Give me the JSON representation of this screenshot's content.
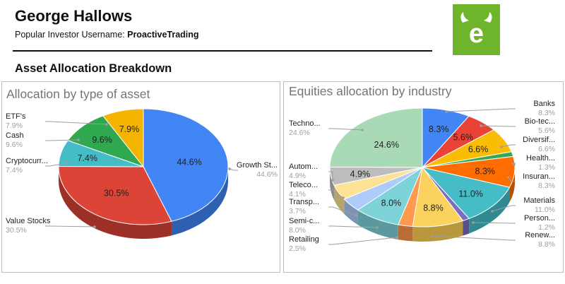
{
  "header": {
    "investor_name": "George Hallows",
    "username_label": "Popular Investor Username: ",
    "username_value": "ProactiveTrading",
    "section_title": "Asset Allocation Breakdown"
  },
  "brand": {
    "logo_icon": "etoro-bull-logo-icon",
    "logo_color": "#6fb52b"
  },
  "chart_data": [
    {
      "type": "pie",
      "title": "Allocation by type of asset",
      "three_d": true,
      "start_angle_deg": 0,
      "slices": [
        {
          "label": "Growth St...",
          "value": 44.6,
          "display": "44.6%",
          "color": "#4285f4",
          "dark": "#2f5fb0"
        },
        {
          "label": "Value Stocks",
          "value": 30.5,
          "display": "30.5%",
          "color": "#db4437",
          "dark": "#9c2f26"
        },
        {
          "label": "Cryptocurr...",
          "value": 7.4,
          "display": "7.4%",
          "color": "#46bdc6",
          "dark": "#2f8a91"
        },
        {
          "label": "Cash",
          "value": 9.6,
          "display": "9.6%",
          "color": "#2fa84f",
          "dark": "#1f7a38"
        },
        {
          "label": "ETF's",
          "value": 7.9,
          "display": "7.9%",
          "color": "#f4b400",
          "dark": "#b08200"
        }
      ]
    },
    {
      "type": "pie",
      "title": "Equities allocation by industry",
      "three_d": true,
      "start_angle_deg": 0,
      "slices": [
        {
          "label": "Banks",
          "value": 8.3,
          "display": "8.3%",
          "color": "#4285f4",
          "dark": "#2f5fb0"
        },
        {
          "label": "Bio-tec...",
          "value": 5.6,
          "display": "5.6%",
          "color": "#ea4335",
          "dark": "#a83026"
        },
        {
          "label": "Diversif...",
          "value": 6.6,
          "display": "6.6%",
          "color": "#fbbc04",
          "dark": "#b58700"
        },
        {
          "label": "Health...",
          "value": 1.3,
          "display": "1.3%",
          "color": "#34a853",
          "dark": "#247a3b"
        },
        {
          "label": "Insuran...",
          "value": 8.3,
          "display": "8.3%",
          "color": "#ff6d01",
          "dark": "#b84e00"
        },
        {
          "label": "Materials",
          "value": 11.0,
          "display": "11.0%",
          "color": "#46bdc6",
          "dark": "#2f8a91"
        },
        {
          "label": "Person...",
          "value": 1.2,
          "display": "1.2%",
          "color": "#7b6ec0",
          "dark": "#574e8a"
        },
        {
          "label": "Renew...",
          "value": 8.8,
          "display": "8.8%",
          "color": "#fcd25e",
          "dark": "#b8973d"
        },
        {
          "label": "Retailing",
          "value": 2.5,
          "display": "2.5%",
          "color": "#ff994d",
          "dark": "#b86d36"
        },
        {
          "label": "Semi-c...",
          "value": 8.0,
          "display": "8.0%",
          "color": "#7ed3d9",
          "dark": "#5a9a9e"
        },
        {
          "label": "Transp...",
          "value": 3.7,
          "display": "3.7%",
          "color": "#aecbfa",
          "dark": "#7d93b5"
        },
        {
          "label": "Teleco...",
          "value": 4.1,
          "display": "4.1%",
          "color": "#fde293",
          "dark": "#b8a46a"
        },
        {
          "label": "Autom...",
          "value": 4.9,
          "display": "4.9%",
          "color": "#bdbdbd",
          "dark": "#8a8a8a"
        },
        {
          "label": "Techno...",
          "value": 24.6,
          "display": "24.6%",
          "color": "#a8dab5",
          "dark": "#79a082"
        }
      ]
    }
  ]
}
